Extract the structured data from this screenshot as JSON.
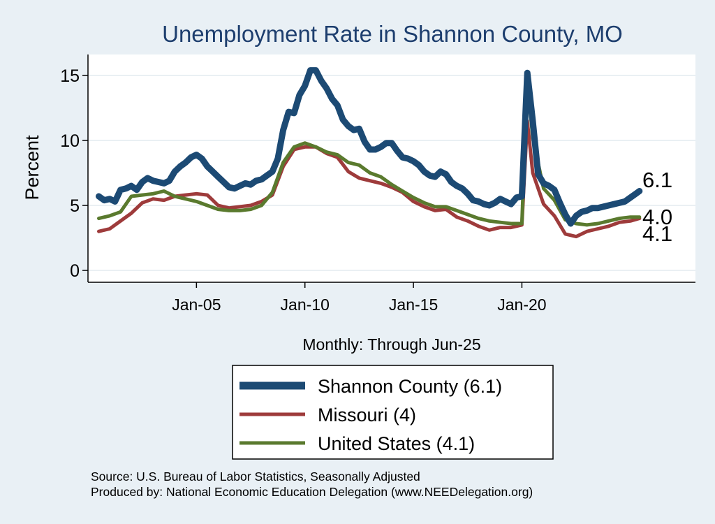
{
  "chart_data": {
    "type": "line",
    "title": "Unemployment Rate in Shannon  County, MO",
    "xlabel": "Monthly: Through Jun-25",
    "ylabel": "Percent",
    "ylim": [
      0,
      16
    ],
    "yticks": [
      0,
      5,
      10,
      15
    ],
    "xlim": [
      2000.0,
      2028.0
    ],
    "xticks": [
      {
        "value": 2005.0,
        "label": "Jan-05"
      },
      {
        "value": 2010.0,
        "label": "Jan-10"
      },
      {
        "value": 2015.0,
        "label": "Jan-15"
      },
      {
        "value": 2020.0,
        "label": "Jan-20"
      }
    ],
    "grid": true,
    "legend_position": "bottom",
    "series": [
      {
        "name": "Shannon  County",
        "legend_label": "Shannon  County (6.1)",
        "end_label": "6.1",
        "color": "#1c4a74",
        "points": [
          [
            2000.5,
            5.7
          ],
          [
            2000.75,
            5.4
          ],
          [
            2001.0,
            5.5
          ],
          [
            2001.25,
            5.3
          ],
          [
            2001.5,
            6.2
          ],
          [
            2001.75,
            6.3
          ],
          [
            2002.0,
            6.5
          ],
          [
            2002.25,
            6.2
          ],
          [
            2002.5,
            6.8
          ],
          [
            2002.75,
            7.1
          ],
          [
            2003.0,
            6.9
          ],
          [
            2003.25,
            6.8
          ],
          [
            2003.5,
            6.7
          ],
          [
            2003.75,
            6.9
          ],
          [
            2004.0,
            7.6
          ],
          [
            2004.25,
            8.0
          ],
          [
            2004.5,
            8.3
          ],
          [
            2004.75,
            8.7
          ],
          [
            2005.0,
            8.9
          ],
          [
            2005.25,
            8.6
          ],
          [
            2005.5,
            8.0
          ],
          [
            2005.75,
            7.6
          ],
          [
            2006.0,
            7.2
          ],
          [
            2006.25,
            6.8
          ],
          [
            2006.5,
            6.4
          ],
          [
            2006.75,
            6.3
          ],
          [
            2007.0,
            6.5
          ],
          [
            2007.25,
            6.7
          ],
          [
            2007.5,
            6.6
          ],
          [
            2007.75,
            6.9
          ],
          [
            2008.0,
            7.0
          ],
          [
            2008.25,
            7.3
          ],
          [
            2008.5,
            7.6
          ],
          [
            2008.75,
            8.6
          ],
          [
            2009.0,
            10.8
          ],
          [
            2009.25,
            12.2
          ],
          [
            2009.5,
            12.1
          ],
          [
            2009.75,
            13.5
          ],
          [
            2010.0,
            14.2
          ],
          [
            2010.25,
            15.4
          ],
          [
            2010.5,
            15.4
          ],
          [
            2010.75,
            14.6
          ],
          [
            2011.0,
            14.0
          ],
          [
            2011.25,
            13.2
          ],
          [
            2011.5,
            12.7
          ],
          [
            2011.75,
            11.6
          ],
          [
            2012.0,
            11.1
          ],
          [
            2012.25,
            10.8
          ],
          [
            2012.5,
            10.9
          ],
          [
            2012.75,
            9.9
          ],
          [
            2013.0,
            9.3
          ],
          [
            2013.25,
            9.3
          ],
          [
            2013.5,
            9.5
          ],
          [
            2013.75,
            9.8
          ],
          [
            2014.0,
            9.8
          ],
          [
            2014.25,
            9.2
          ],
          [
            2014.5,
            8.7
          ],
          [
            2014.75,
            8.6
          ],
          [
            2015.0,
            8.4
          ],
          [
            2015.25,
            8.1
          ],
          [
            2015.5,
            7.6
          ],
          [
            2015.75,
            7.3
          ],
          [
            2016.0,
            7.2
          ],
          [
            2016.25,
            7.6
          ],
          [
            2016.5,
            7.4
          ],
          [
            2016.75,
            6.8
          ],
          [
            2017.0,
            6.5
          ],
          [
            2017.25,
            6.3
          ],
          [
            2017.5,
            5.9
          ],
          [
            2017.75,
            5.4
          ],
          [
            2018.0,
            5.3
          ],
          [
            2018.25,
            5.1
          ],
          [
            2018.5,
            5.0
          ],
          [
            2018.75,
            5.2
          ],
          [
            2019.0,
            5.5
          ],
          [
            2019.25,
            5.3
          ],
          [
            2019.5,
            5.1
          ],
          [
            2019.75,
            5.6
          ],
          [
            2020.0,
            5.7
          ],
          [
            2020.25,
            15.2
          ],
          [
            2020.5,
            11.5
          ],
          [
            2020.75,
            7.4
          ],
          [
            2021.0,
            6.7
          ],
          [
            2021.25,
            6.5
          ],
          [
            2021.5,
            6.2
          ],
          [
            2021.75,
            5.2
          ],
          [
            2022.0,
            4.3
          ],
          [
            2022.25,
            3.6
          ],
          [
            2022.5,
            4.2
          ],
          [
            2022.75,
            4.5
          ],
          [
            2023.0,
            4.6
          ],
          [
            2023.25,
            4.8
          ],
          [
            2023.5,
            4.8
          ],
          [
            2023.75,
            4.9
          ],
          [
            2024.0,
            5.0
          ],
          [
            2024.25,
            5.1
          ],
          [
            2024.5,
            5.2
          ],
          [
            2024.75,
            5.3
          ],
          [
            2025.0,
            5.6
          ],
          [
            2025.25,
            5.9
          ],
          [
            2025.42,
            6.1
          ]
        ]
      },
      {
        "name": "Missouri",
        "legend_label": "Missouri (4)",
        "end_label": "4.0",
        "color": "#9e3b3b",
        "points": [
          [
            2000.5,
            3.0
          ],
          [
            2001.0,
            3.2
          ],
          [
            2001.5,
            3.8
          ],
          [
            2002.0,
            4.4
          ],
          [
            2002.5,
            5.2
          ],
          [
            2003.0,
            5.5
          ],
          [
            2003.5,
            5.4
          ],
          [
            2004.0,
            5.7
          ],
          [
            2004.5,
            5.8
          ],
          [
            2005.0,
            5.9
          ],
          [
            2005.5,
            5.8
          ],
          [
            2006.0,
            5.0
          ],
          [
            2006.5,
            4.8
          ],
          [
            2007.0,
            4.9
          ],
          [
            2007.5,
            5.0
          ],
          [
            2008.0,
            5.3
          ],
          [
            2008.5,
            5.8
          ],
          [
            2009.0,
            8.0
          ],
          [
            2009.5,
            9.3
          ],
          [
            2010.0,
            9.5
          ],
          [
            2010.5,
            9.5
          ],
          [
            2011.0,
            9.0
          ],
          [
            2011.5,
            8.7
          ],
          [
            2012.0,
            7.6
          ],
          [
            2012.5,
            7.1
          ],
          [
            2013.0,
            6.9
          ],
          [
            2013.5,
            6.7
          ],
          [
            2014.0,
            6.4
          ],
          [
            2014.5,
            6.0
          ],
          [
            2015.0,
            5.3
          ],
          [
            2015.5,
            4.9
          ],
          [
            2016.0,
            4.6
          ],
          [
            2016.5,
            4.7
          ],
          [
            2017.0,
            4.1
          ],
          [
            2017.5,
            3.8
          ],
          [
            2018.0,
            3.4
          ],
          [
            2018.5,
            3.1
          ],
          [
            2019.0,
            3.3
          ],
          [
            2019.5,
            3.3
          ],
          [
            2020.0,
            3.5
          ],
          [
            2020.25,
            11.5
          ],
          [
            2020.5,
            7.5
          ],
          [
            2021.0,
            5.1
          ],
          [
            2021.5,
            4.2
          ],
          [
            2022.0,
            2.8
          ],
          [
            2022.5,
            2.6
          ],
          [
            2023.0,
            3.0
          ],
          [
            2023.5,
            3.2
          ],
          [
            2024.0,
            3.4
          ],
          [
            2024.5,
            3.7
          ],
          [
            2025.0,
            3.8
          ],
          [
            2025.42,
            4.0
          ]
        ]
      },
      {
        "name": "United States",
        "legend_label": "United States (4.1)",
        "end_label": "4.1",
        "color": "#5a7a2e",
        "points": [
          [
            2000.5,
            4.0
          ],
          [
            2001.0,
            4.2
          ],
          [
            2001.5,
            4.5
          ],
          [
            2002.0,
            5.7
          ],
          [
            2002.5,
            5.8
          ],
          [
            2003.0,
            5.9
          ],
          [
            2003.5,
            6.1
          ],
          [
            2004.0,
            5.7
          ],
          [
            2004.5,
            5.5
          ],
          [
            2005.0,
            5.3
          ],
          [
            2005.5,
            5.0
          ],
          [
            2006.0,
            4.7
          ],
          [
            2006.5,
            4.6
          ],
          [
            2007.0,
            4.6
          ],
          [
            2007.5,
            4.7
          ],
          [
            2008.0,
            5.0
          ],
          [
            2008.5,
            6.0
          ],
          [
            2009.0,
            8.3
          ],
          [
            2009.5,
            9.5
          ],
          [
            2010.0,
            9.8
          ],
          [
            2010.5,
            9.5
          ],
          [
            2011.0,
            9.1
          ],
          [
            2011.5,
            8.9
          ],
          [
            2012.0,
            8.3
          ],
          [
            2012.5,
            8.1
          ],
          [
            2013.0,
            7.5
          ],
          [
            2013.5,
            7.2
          ],
          [
            2014.0,
            6.6
          ],
          [
            2014.5,
            6.1
          ],
          [
            2015.0,
            5.6
          ],
          [
            2015.5,
            5.2
          ],
          [
            2016.0,
            4.9
          ],
          [
            2016.5,
            4.9
          ],
          [
            2017.0,
            4.6
          ],
          [
            2017.5,
            4.3
          ],
          [
            2018.0,
            4.0
          ],
          [
            2018.5,
            3.8
          ],
          [
            2019.0,
            3.7
          ],
          [
            2019.5,
            3.6
          ],
          [
            2020.0,
            3.6
          ],
          [
            2020.25,
            14.7
          ],
          [
            2020.5,
            10.2
          ],
          [
            2021.0,
            6.3
          ],
          [
            2021.5,
            5.4
          ],
          [
            2022.0,
            3.9
          ],
          [
            2022.5,
            3.6
          ],
          [
            2023.0,
            3.5
          ],
          [
            2023.5,
            3.6
          ],
          [
            2024.0,
            3.8
          ],
          [
            2024.5,
            4.0
          ],
          [
            2025.0,
            4.1
          ],
          [
            2025.42,
            4.1
          ]
        ]
      }
    ]
  },
  "source_line": "Source: U.S. Bureau of Labor Statistics, Seasonally Adjusted",
  "producer_line": "Produced by: National Economic Education Delegation (www.NEEDelegation.org)"
}
